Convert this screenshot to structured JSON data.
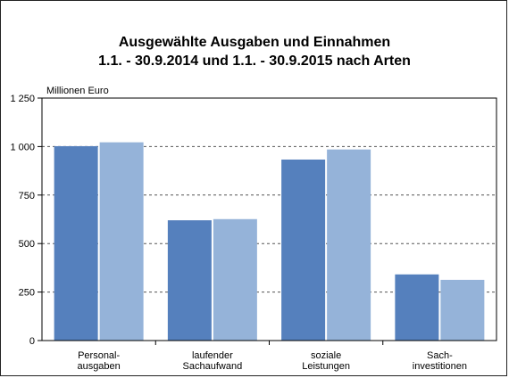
{
  "chart_data": {
    "type": "bar",
    "title_line1": "Ausgewählte Ausgaben und Einnahmen",
    "title_line2": "1.1. - 30.9.2014 und 1.1. - 30.9.2015 nach Arten",
    "unit_label": "Millionen Euro",
    "categories": [
      [
        "Personal-",
        "ausgaben"
      ],
      [
        "laufender",
        "Sachaufwand"
      ],
      [
        "soziale",
        "Leistungen"
      ],
      [
        "Sach-",
        "investitionen"
      ]
    ],
    "series": [
      {
        "values": [
          1002,
          620,
          933,
          341
        ],
        "color": "#5580bd"
      },
      {
        "values": [
          1022,
          626,
          985,
          313
        ],
        "color": "#95b3d9"
      }
    ],
    "ylim": [
      0,
      1250
    ],
    "yticks": [
      0,
      250,
      500,
      750,
      1000,
      1250
    ],
    "ytick_labels": [
      "0",
      "250",
      "500",
      "750",
      "1 000",
      "1 250"
    ],
    "grid": "dashed horizontal"
  }
}
